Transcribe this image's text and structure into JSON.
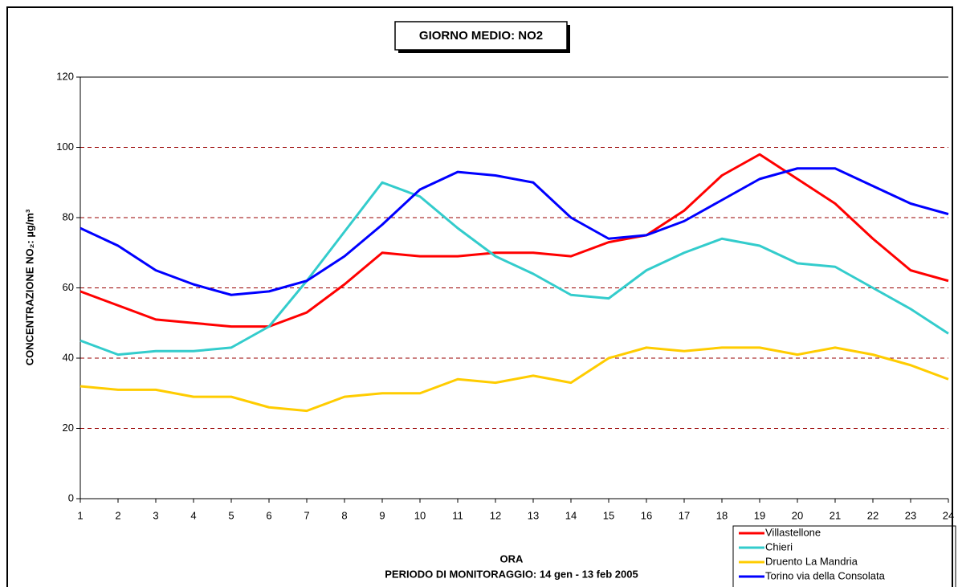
{
  "chart_data": {
    "type": "line",
    "title": "GIORNO MEDIO: NO2",
    "x_label": "ORA",
    "subtitle": "PERIODO DI MONITORAGGIO: 14 gen - 13 feb 2005",
    "y_label": "CONCENTRAZIONE NO₂: µg/m³",
    "x": [
      1,
      2,
      3,
      4,
      5,
      6,
      7,
      8,
      9,
      10,
      11,
      12,
      13,
      14,
      15,
      16,
      17,
      18,
      19,
      20,
      21,
      22,
      23,
      24
    ],
    "xlim": [
      1,
      24
    ],
    "ylim": [
      0,
      120
    ],
    "yticks": [
      0,
      20,
      40,
      60,
      80,
      100,
      120
    ],
    "grid": true,
    "legend": "bottom-right",
    "series": [
      {
        "name": "Villastellone",
        "color": "#ff0000",
        "values": [
          59,
          55,
          51,
          50,
          49,
          49,
          53,
          61,
          70,
          69,
          69,
          70,
          70,
          69,
          73,
          75,
          82,
          92,
          98,
          91,
          84,
          74,
          65,
          62
        ]
      },
      {
        "name": "Chieri",
        "color": "#33cccc",
        "values": [
          45,
          41,
          42,
          42,
          43,
          49,
          62,
          76,
          90,
          86,
          77,
          69,
          64,
          58,
          57,
          65,
          70,
          74,
          72,
          67,
          66,
          60,
          54,
          47
        ]
      },
      {
        "name": "Druento La Mandria",
        "color": "#ffcc00",
        "values": [
          32,
          31,
          31,
          29,
          29,
          26,
          25,
          29,
          30,
          30,
          34,
          33,
          35,
          33,
          40,
          43,
          42,
          43,
          43,
          41,
          43,
          41,
          38,
          34
        ]
      },
      {
        "name": "Torino via della Consolata",
        "color": "#0000ff",
        "values": [
          77,
          72,
          65,
          61,
          58,
          59,
          62,
          69,
          78,
          88,
          93,
          92,
          90,
          80,
          74,
          75,
          79,
          85,
          91,
          94,
          94,
          89,
          84,
          81
        ]
      }
    ]
  }
}
